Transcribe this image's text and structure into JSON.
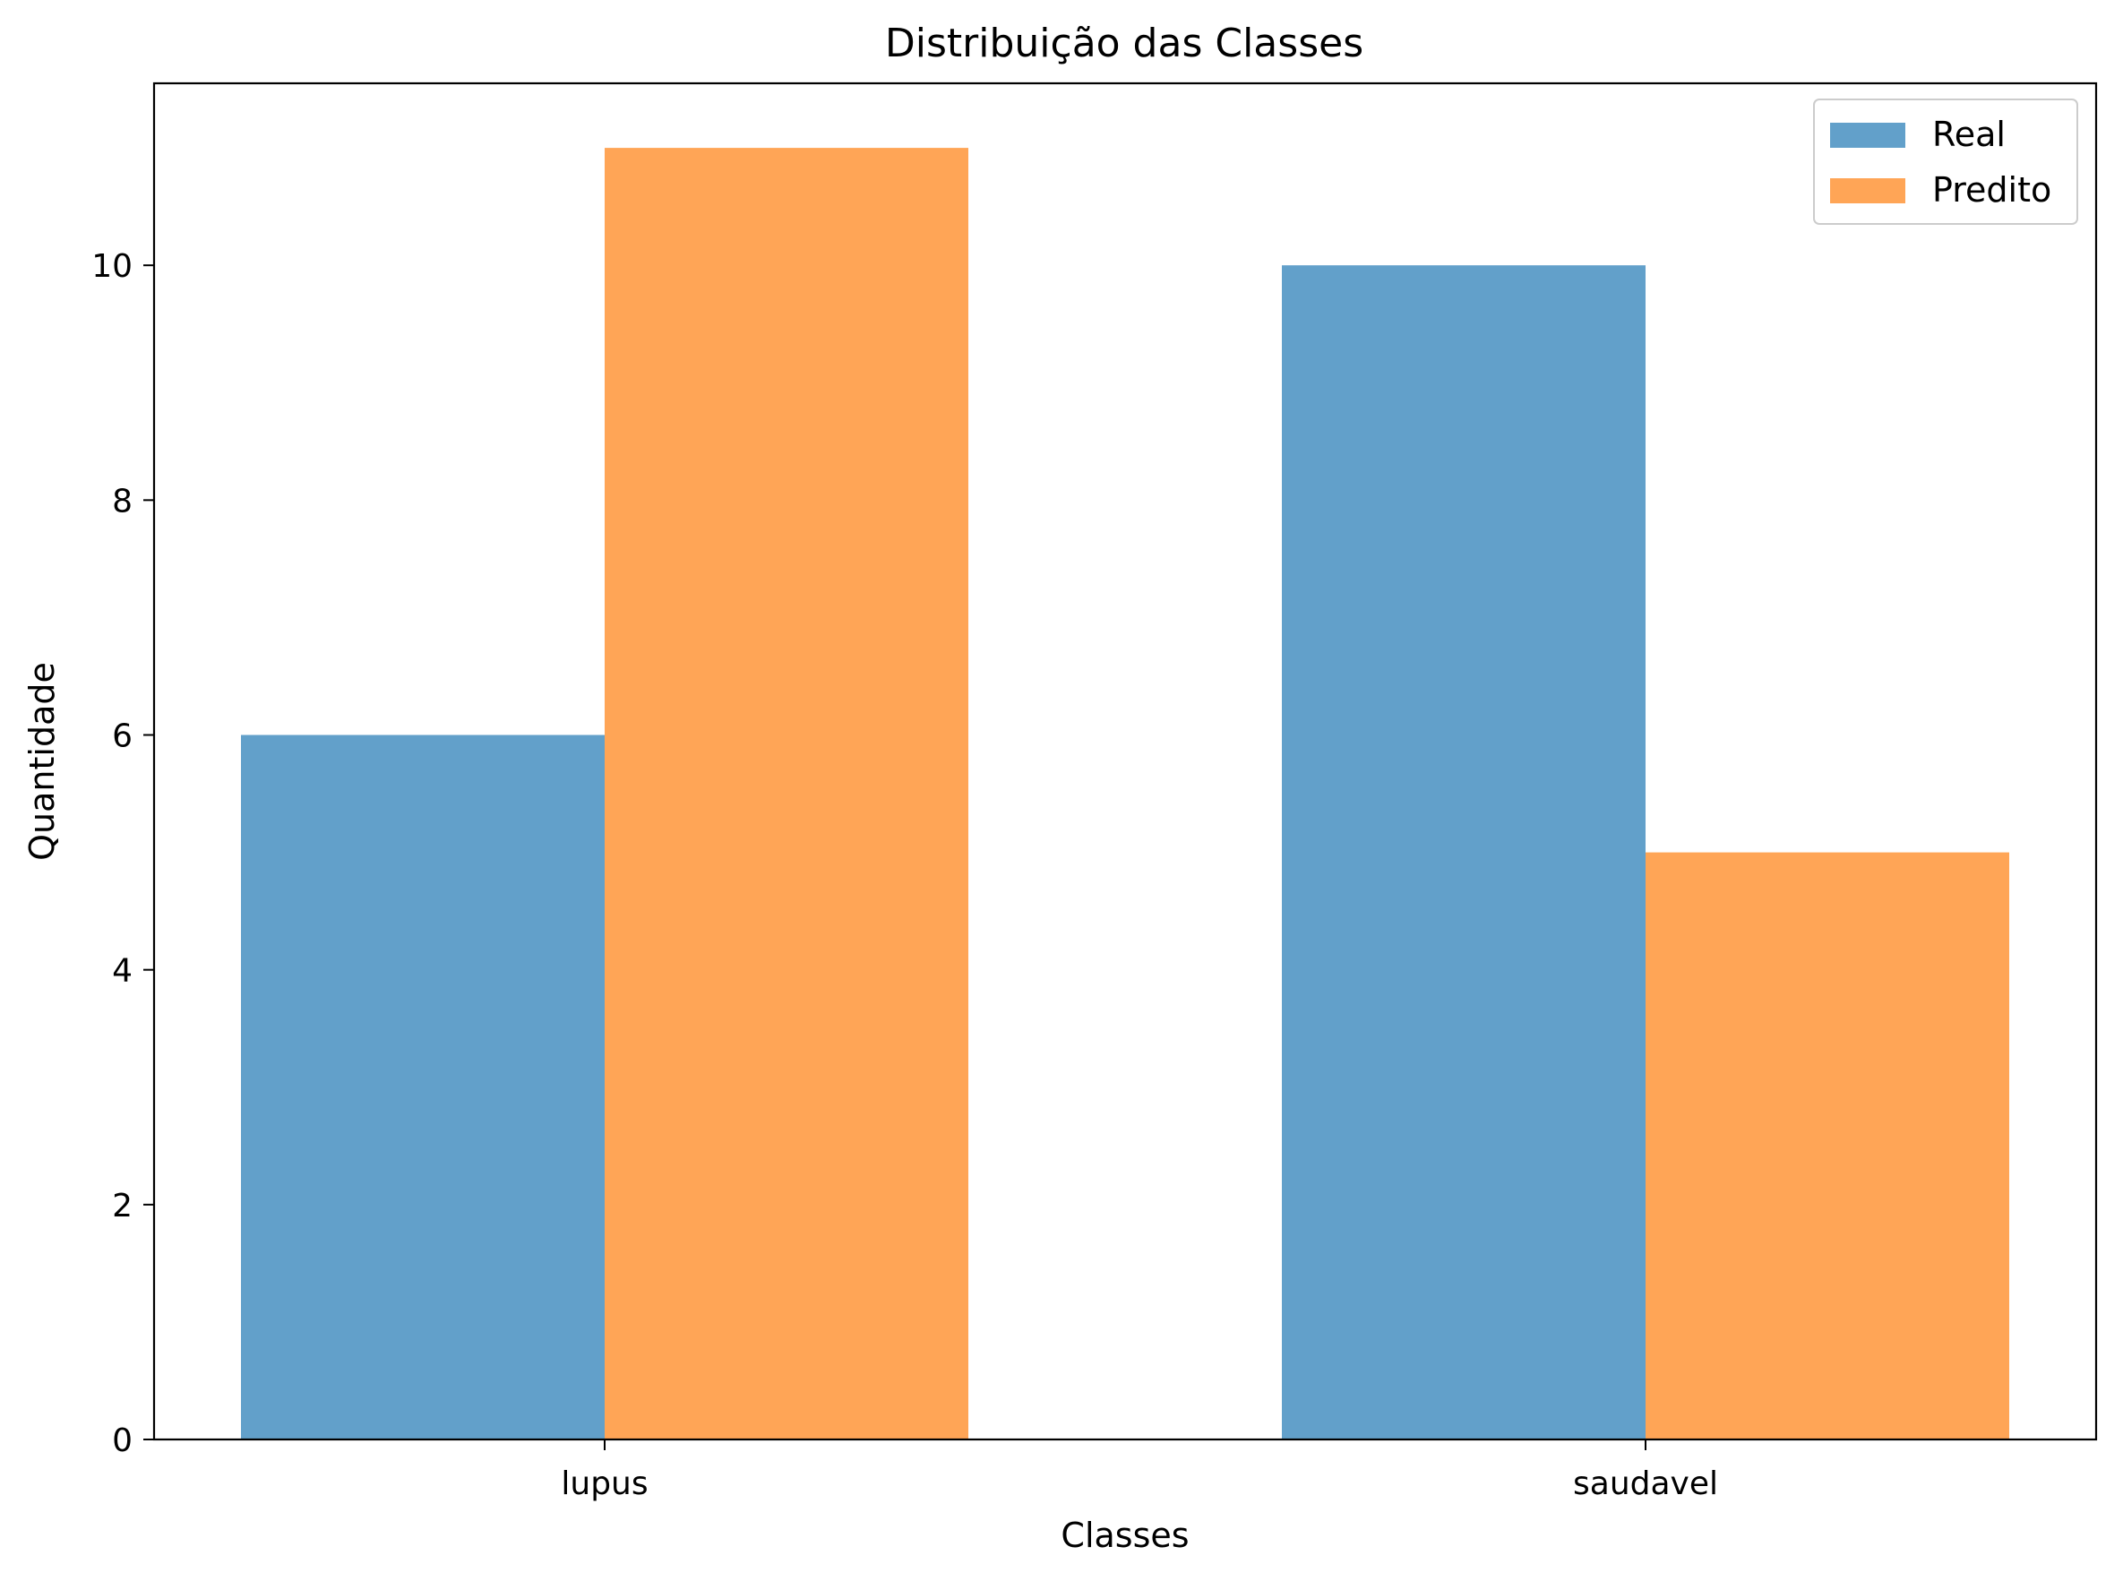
{
  "chart_data": {
    "type": "bar",
    "title": "Distribuição das Classes",
    "xlabel": "Classes",
    "ylabel": "Quantidade",
    "categories": [
      "lupus",
      "saudavel"
    ],
    "series": [
      {
        "name": "Real",
        "values": [
          6,
          10
        ],
        "color": "#1f77b4"
      },
      {
        "name": "Predito",
        "values": [
          11,
          5
        ],
        "color": "#ff7f0e"
      }
    ],
    "bar_opacity": 0.7,
    "ylim": [
      0,
      11.55
    ],
    "yticks": [
      0,
      2,
      4,
      6,
      8,
      10
    ],
    "grid": false,
    "legend": "top-right"
  }
}
